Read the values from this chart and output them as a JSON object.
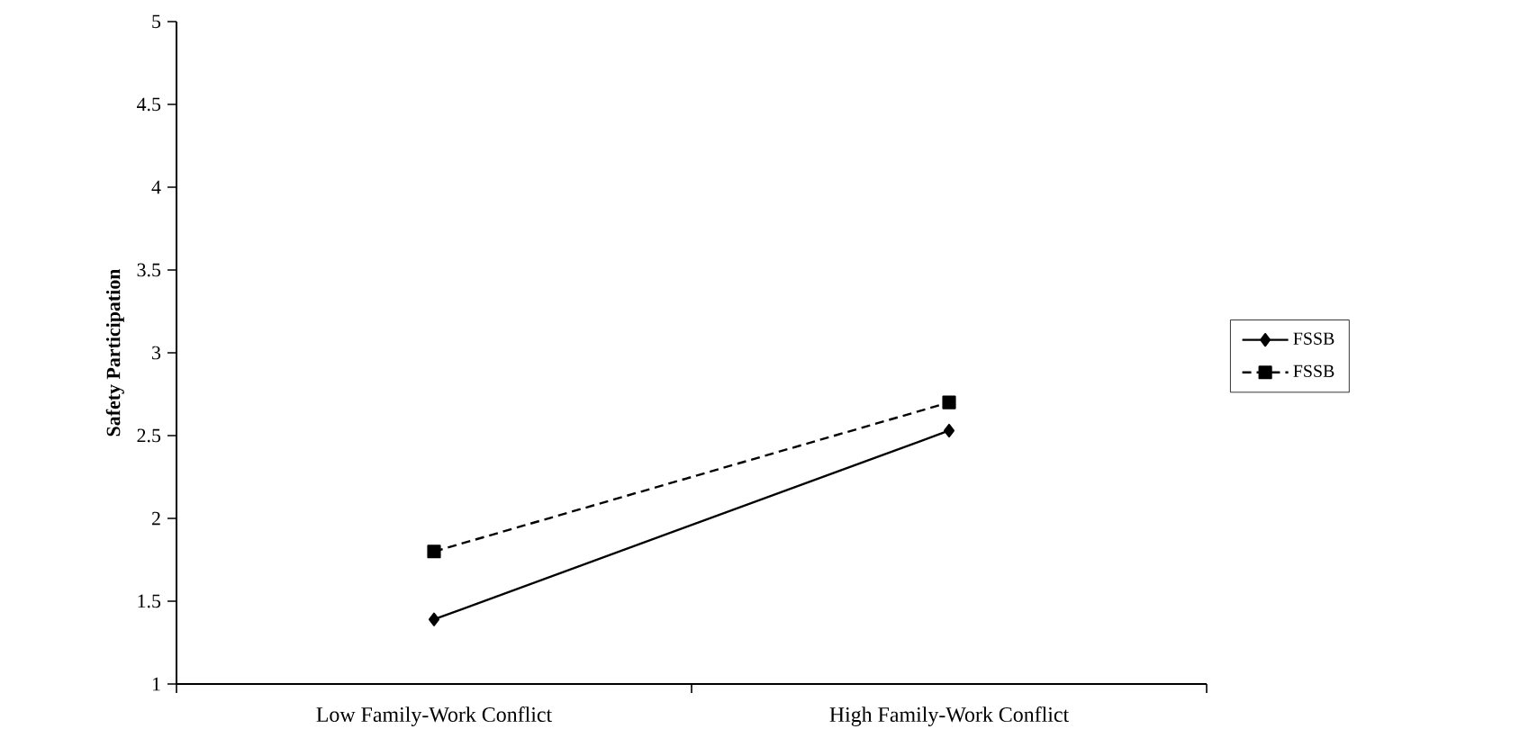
{
  "chart_data": {
    "type": "line",
    "ylabel": "Safety Participation",
    "categories": [
      "Low Family-Work Conflict",
      "High Family-Work Conflict"
    ],
    "series": [
      {
        "name": "FSSB",
        "color": "#000000",
        "values": [
          1.39,
          2.53
        ],
        "marker": "diamond",
        "line_style": "solid"
      },
      {
        "name": "FSSB",
        "color": "#000000",
        "values": [
          1.8,
          2.7
        ],
        "marker": "square",
        "line_style": "dashed"
      }
    ],
    "ylim": [
      1,
      5
    ],
    "yticks": [
      1,
      1.5,
      2,
      2.5,
      3,
      3.5,
      4,
      4.5,
      5
    ],
    "grid": false,
    "legend": "right"
  }
}
